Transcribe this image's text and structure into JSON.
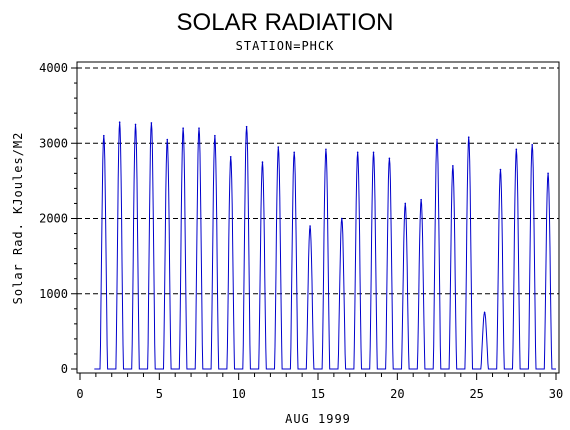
{
  "chart_data": {
    "type": "line",
    "title": "SOLAR RADIATION",
    "subtitle": "STATION=PHCK",
    "xlabel": "AUG 1999",
    "ylabel": "Solar Rad. KJoules/M2",
    "xlim": [
      0,
      30
    ],
    "ylim": [
      0,
      4000
    ],
    "x_ticks": [
      0,
      5,
      10,
      15,
      20,
      25,
      30
    ],
    "y_ticks": [
      0,
      1000,
      2000,
      3000,
      4000
    ],
    "grid": "horizontal dashed",
    "line_color": "#0000cc",
    "daily_peaks": [
      {
        "day": 1.5,
        "peak": 3100
      },
      {
        "day": 2.5,
        "peak": 3280
      },
      {
        "day": 3.5,
        "peak": 3250
      },
      {
        "day": 4.5,
        "peak": 3270
      },
      {
        "day": 5.5,
        "peak": 3050
      },
      {
        "day": 6.5,
        "peak": 3200
      },
      {
        "day": 7.5,
        "peak": 3200
      },
      {
        "day": 8.5,
        "peak": 3100
      },
      {
        "day": 9.5,
        "peak": 2820
      },
      {
        "day": 10.5,
        "peak": 3220
      },
      {
        "day": 11.5,
        "peak": 2750
      },
      {
        "day": 12.5,
        "peak": 2950
      },
      {
        "day": 13.5,
        "peak": 2880
      },
      {
        "day": 14.5,
        "peak": 1900
      },
      {
        "day": 15.5,
        "peak": 2920
      },
      {
        "day": 16.5,
        "peak": 2000
      },
      {
        "day": 17.5,
        "peak": 2880
      },
      {
        "day": 18.5,
        "peak": 2880
      },
      {
        "day": 19.5,
        "peak": 2800
      },
      {
        "day": 20.5,
        "peak": 2200
      },
      {
        "day": 21.5,
        "peak": 2250
      },
      {
        "day": 22.5,
        "peak": 3050
      },
      {
        "day": 23.5,
        "peak": 2700
      },
      {
        "day": 24.5,
        "peak": 3080
      },
      {
        "day": 25.5,
        "peak": 750
      },
      {
        "day": 26.5,
        "peak": 2650
      },
      {
        "day": 27.5,
        "peak": 2920
      },
      {
        "day": 28.5,
        "peak": 2980
      },
      {
        "day": 29.5,
        "peak": 2600
      }
    ]
  }
}
